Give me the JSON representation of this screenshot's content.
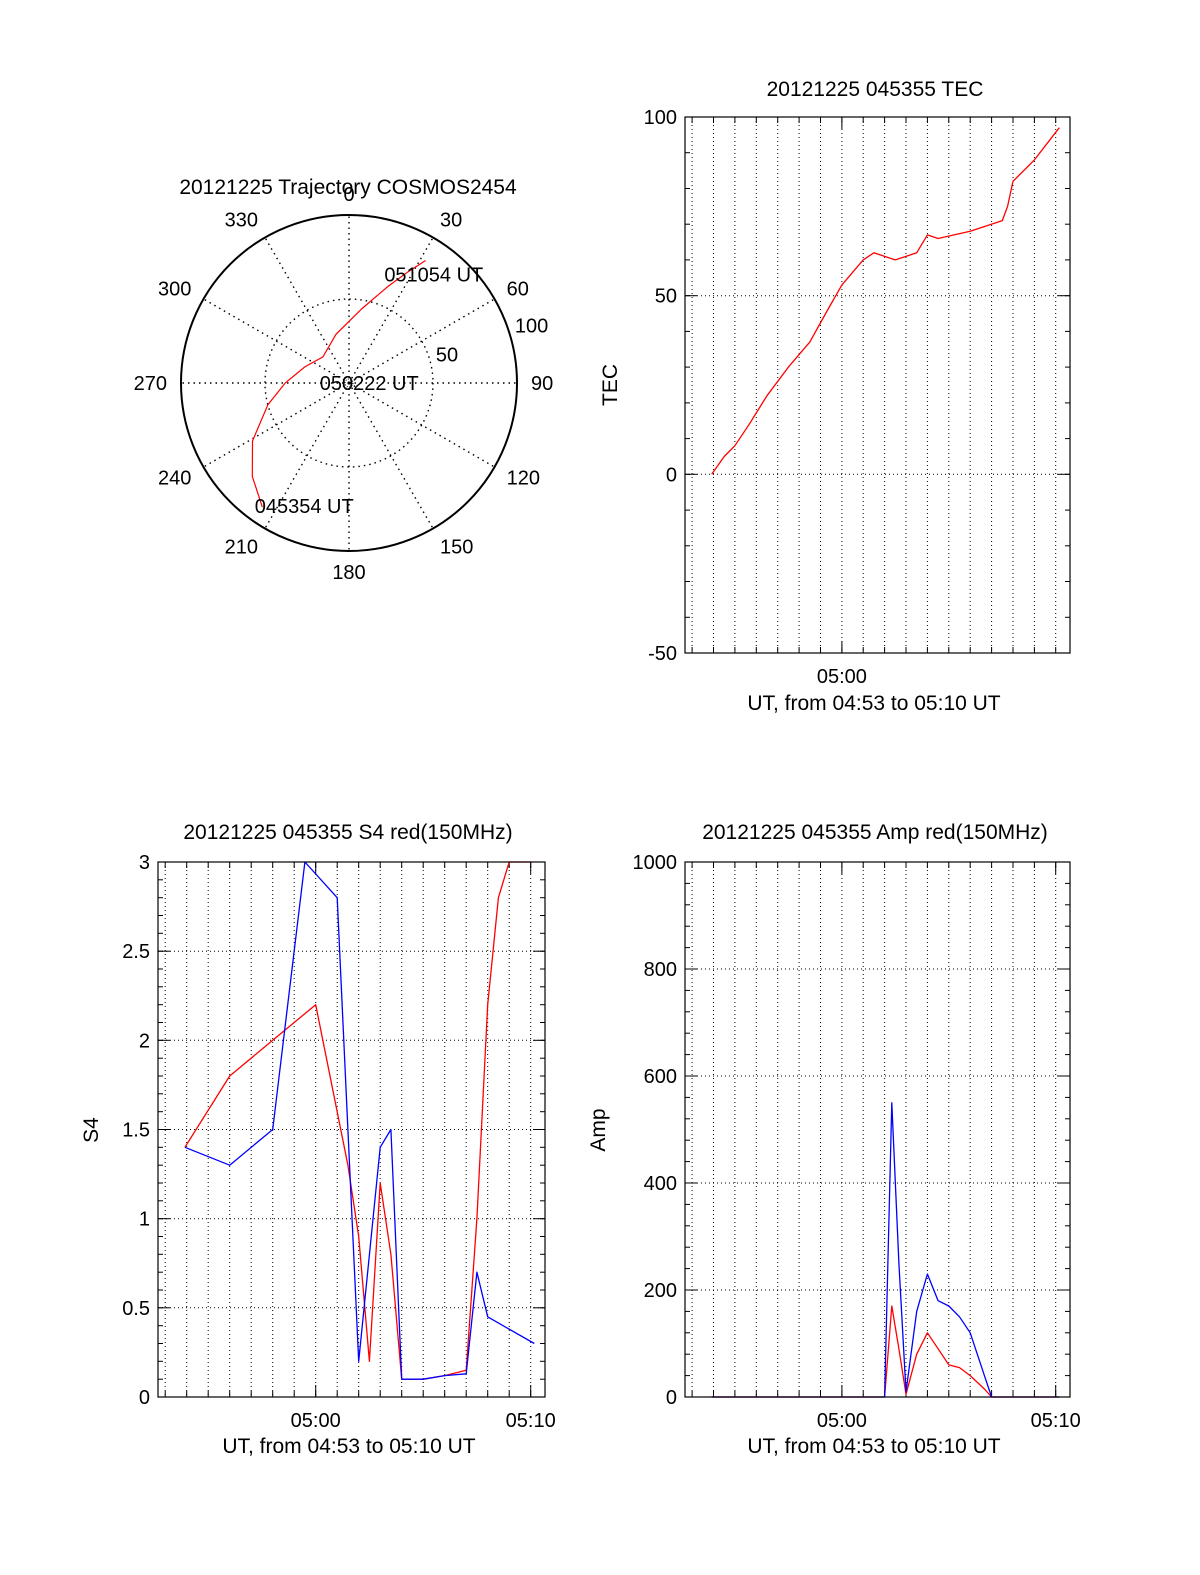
{
  "chart_data": [
    {
      "type": "polar",
      "title": "20121225 Trajectory COSMOS2454",
      "azimuth_labels": [
        "0",
        "30",
        "60",
        "90",
        "120",
        "150",
        "180",
        "210",
        "240",
        "270",
        "300",
        "330"
      ],
      "radial_labels": [
        "50",
        "100"
      ],
      "radial_range": [
        0,
        100
      ],
      "grid": true,
      "series": [
        {
          "color": "#ff0000",
          "points": [
            {
              "az": 215,
              "zen": 90
            },
            {
              "az": 226,
              "zen": 80
            },
            {
              "az": 239,
              "zen": 67
            },
            {
              "az": 255,
              "zen": 50
            },
            {
              "az": 270,
              "zen": 38
            },
            {
              "az": 290,
              "zen": 28
            },
            {
              "az": 315,
              "zen": 22
            },
            {
              "az": 345,
              "zen": 30
            },
            {
              "az": 10,
              "zen": 45
            },
            {
              "az": 22,
              "zen": 62
            },
            {
              "az": 28,
              "zen": 75
            },
            {
              "az": 32,
              "zen": 86
            }
          ]
        }
      ],
      "annotations": [
        {
          "text": "051054 UT",
          "az": 38,
          "zen": 82
        },
        {
          "text": "050222 UT",
          "az": 90,
          "zen": 12
        },
        {
          "text": "045354 UT",
          "az": 200,
          "zen": 78
        }
      ]
    },
    {
      "type": "line",
      "title": "20121225 045355 TEC",
      "xlabel": "UT, from 04:53 to 05:10 UT",
      "ylabel": "TEC",
      "xlim": [
        "04:52:40",
        "05:10:40"
      ],
      "ylim": [
        -50,
        100
      ],
      "xticks": [
        "05:00"
      ],
      "yticks": [
        "-50",
        "0",
        "50",
        "100"
      ],
      "grid": true,
      "series": [
        {
          "color": "#ff0000",
          "x": [
            "04:53:55",
            "04:54:30",
            "04:55:00",
            "04:55:40",
            "04:56:30",
            "04:57:30",
            "04:58:30",
            "04:59:20",
            "05:00:00",
            "05:01:00",
            "05:01:30",
            "05:02:30",
            "05:03:30",
            "05:04:00",
            "05:04:30",
            "05:06:00",
            "05:07:30",
            "05:07:45",
            "05:08:00",
            "05:09:00",
            "05:10:10"
          ],
          "y": [
            0,
            5,
            8,
            14,
            22,
            30,
            37,
            46,
            53,
            60,
            62,
            60,
            62,
            67,
            66,
            68,
            71,
            75,
            82,
            88,
            97
          ]
        }
      ]
    },
    {
      "type": "line",
      "title": "20121225 045355 S4 red(150MHz)",
      "xlabel": "UT, from 04:53 to 05:10 UT",
      "ylabel": "S4",
      "xlim": [
        "04:52:40",
        "05:10:40"
      ],
      "ylim": [
        0,
        3
      ],
      "xticks": [
        "05:00",
        "05:10"
      ],
      "yticks": [
        "0",
        "0.5",
        "1",
        "1.5",
        "2",
        "2.5",
        "3"
      ],
      "grid": true,
      "series": [
        {
          "color": "#ff0000",
          "x": [
            "04:53:55",
            "04:56:00",
            "04:58:00",
            "05:00:00",
            "05:01:30",
            "05:02:00",
            "05:02:30",
            "05:03:00",
            "05:03:30",
            "05:04:00",
            "05:05:00",
            "05:06:00",
            "05:07:00",
            "05:07:30",
            "05:08:00",
            "05:08:30",
            "05:09:00",
            "05:10:00"
          ],
          "y": [
            1.4,
            1.8,
            2.0,
            2.2,
            1.3,
            0.9,
            0.2,
            1.2,
            0.8,
            0.1,
            0.1,
            0.12,
            0.15,
            1.0,
            2.2,
            2.8,
            3.0,
            3.0
          ]
        },
        {
          "color": "#0000ff",
          "x": [
            "04:53:55",
            "04:56:00",
            "04:58:00",
            "04:59:30",
            "05:01:00",
            "05:01:30",
            "05:02:00",
            "05:03:00",
            "05:03:30",
            "05:04:00",
            "05:05:00",
            "05:06:00",
            "05:07:00",
            "05:07:30",
            "05:08:00",
            "05:09:00",
            "05:10:10"
          ],
          "y": [
            1.4,
            1.3,
            1.5,
            3.0,
            2.8,
            1.5,
            0.2,
            1.4,
            1.5,
            0.1,
            0.1,
            0.12,
            0.13,
            0.7,
            0.45,
            0.38,
            0.3
          ]
        }
      ]
    },
    {
      "type": "line",
      "title": "20121225 045355 Amp red(150MHz)",
      "xlabel": "UT, from 04:53 to 05:10 UT",
      "ylabel": "Amp",
      "xlim": [
        "04:52:40",
        "05:10:40"
      ],
      "ylim": [
        0,
        1000
      ],
      "xticks": [
        "05:00",
        "05:10"
      ],
      "yticks": [
        "0",
        "200",
        "400",
        "600",
        "800",
        "1000"
      ],
      "grid": true,
      "series": [
        {
          "color": "#ff0000",
          "x": [
            "04:53:55",
            "05:02:00",
            "05:02:20",
            "05:02:40",
            "05:03:00",
            "05:03:30",
            "05:04:00",
            "05:04:30",
            "05:05:00",
            "05:05:30",
            "05:06:00",
            "05:06:40",
            "05:07:00",
            "05:10:10"
          ],
          "y": [
            0,
            0,
            170,
            90,
            5,
            80,
            120,
            90,
            60,
            55,
            40,
            15,
            0,
            0
          ]
        },
        {
          "color": "#0000ff",
          "x": [
            "04:53:55",
            "05:02:00",
            "05:02:20",
            "05:02:40",
            "05:03:00",
            "05:03:30",
            "05:04:00",
            "05:04:30",
            "05:05:00",
            "05:05:30",
            "05:06:00",
            "05:06:20",
            "05:06:40",
            "05:07:00",
            "05:10:10"
          ],
          "y": [
            0,
            0,
            550,
            250,
            10,
            160,
            230,
            180,
            170,
            150,
            120,
            80,
            40,
            0,
            0
          ]
        }
      ]
    }
  ]
}
